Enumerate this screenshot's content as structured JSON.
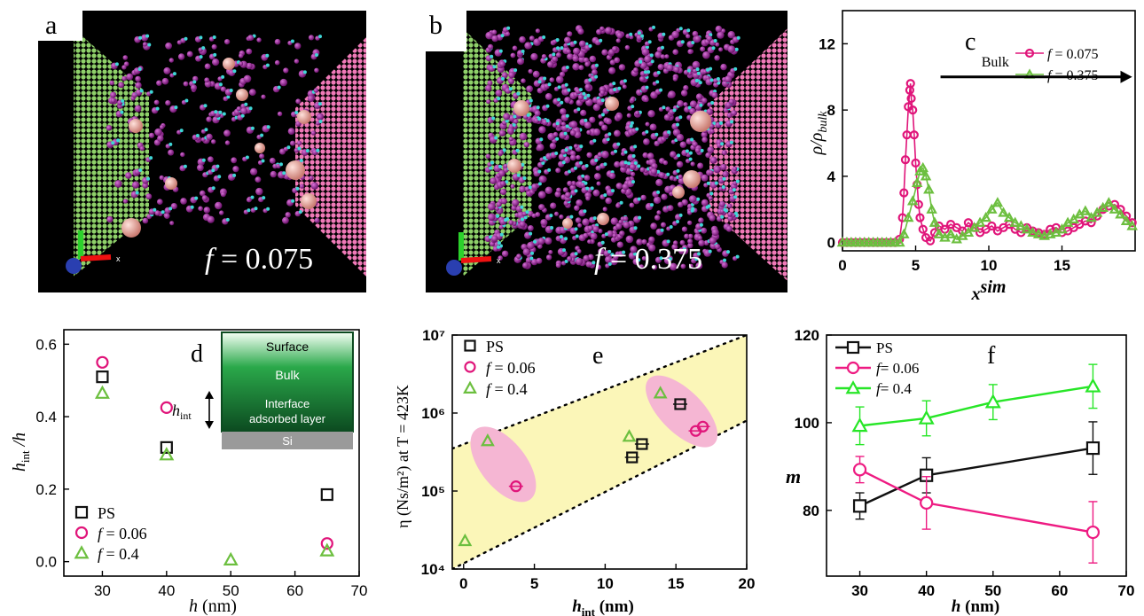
{
  "panels": {
    "a": {
      "letter": "a",
      "f_symbol": "f",
      "f_text": " = 0.075",
      "axis_label": "x"
    },
    "b": {
      "letter": "b",
      "f_symbol": "f",
      "f_text": " = 0.375",
      "axis_label": "x"
    }
  },
  "chart_data": [
    {
      "id": "c",
      "panel_letter": "c",
      "type": "line",
      "xlabel": "x",
      "xlabel_sup": "sim",
      "ylabel": "ρ/ρ",
      "ylabel_sub": "bulk",
      "xlim": [
        0,
        20
      ],
      "ylim": [
        -0.5,
        14
      ],
      "xticks": [
        "0",
        "5",
        "10",
        "15"
      ],
      "yticks": [
        "0",
        "4",
        "8",
        "12"
      ],
      "annotation": "Bulk",
      "series": [
        {
          "name": "f = 0.075",
          "legend_symbol": "f",
          "legend_value": "= 0.075",
          "color": "#e0157a",
          "marker": "circle",
          "x": [
            0,
            0.3,
            0.6,
            0.9,
            1.2,
            1.5,
            1.8,
            2.1,
            2.4,
            2.7,
            3.0,
            3.3,
            3.6,
            3.9,
            4.1,
            4.2,
            4.3,
            4.4,
            4.5,
            4.6,
            4.65,
            4.7,
            4.8,
            4.9,
            5.0,
            5.1,
            5.2,
            5.3,
            5.5,
            5.7,
            6.0,
            6.3,
            6.6,
            7.0,
            7.4,
            7.8,
            8.2,
            8.6,
            9.0,
            9.4,
            9.8,
            10.2,
            10.6,
            11.0,
            11.4,
            11.8,
            12.2,
            12.6,
            13.0,
            13.4,
            13.8,
            14.2,
            14.6,
            15.0,
            15.4,
            15.8,
            16.2,
            16.6,
            17.0,
            17.4,
            17.8,
            18.2,
            18.6,
            19.0,
            19.4,
            19.8
          ],
          "y": [
            0,
            0,
            0,
            0,
            0,
            0,
            0,
            0,
            0,
            0,
            0,
            0,
            0,
            0.2,
            1.5,
            3.0,
            5.0,
            6.5,
            8.2,
            9.2,
            9.6,
            8.7,
            8.0,
            6.5,
            4.8,
            3.5,
            2.3,
            1.5,
            0.8,
            0.3,
            0.1,
            0.6,
            1.0,
            0.8,
            1.1,
            0.9,
            0.7,
            1.2,
            0.9,
            0.6,
            0.8,
            1.0,
            0.7,
            0.9,
            1.1,
            0.8,
            0.6,
            0.9,
            0.7,
            0.6,
            0.5,
            0.8,
            0.9,
            0.6,
            0.7,
            0.9,
            1.1,
            1.3,
            1.2,
            1.6,
            2.0,
            2.2,
            2.3,
            2.0,
            1.6,
            1.2
          ]
        },
        {
          "name": "f = 0.375",
          "legend_symbol": "f",
          "legend_value": "= 0.375",
          "color": "#6cbf3f",
          "marker": "triangle",
          "x": [
            0,
            0.3,
            0.6,
            0.9,
            1.2,
            1.5,
            1.8,
            2.1,
            2.4,
            2.7,
            3.0,
            3.3,
            3.6,
            3.9,
            4.2,
            4.5,
            4.8,
            5.1,
            5.3,
            5.5,
            5.7,
            5.9,
            6.1,
            6.3,
            6.6,
            7.0,
            7.4,
            7.8,
            8.2,
            8.6,
            9.0,
            9.4,
            9.8,
            10.2,
            10.6,
            11.0,
            11.4,
            11.8,
            12.2,
            12.6,
            13.0,
            13.4,
            13.8,
            14.2,
            14.6,
            15.0,
            15.4,
            15.8,
            16.2,
            16.6,
            17.0,
            17.4,
            17.8,
            18.2,
            18.6,
            19.0,
            19.4,
            19.8
          ],
          "y": [
            0,
            0,
            0,
            0,
            0,
            0,
            0,
            0,
            0,
            0,
            0,
            0,
            0,
            0,
            0.5,
            1.5,
            2.5,
            3.6,
            4.3,
            4.5,
            4.0,
            3.2,
            2.0,
            1.2,
            0.5,
            0.3,
            0.5,
            0.2,
            0.4,
            0.6,
            0.9,
            1.2,
            1.5,
            2.0,
            2.4,
            1.8,
            1.5,
            1.2,
            1.0,
            0.8,
            0.6,
            0.5,
            0.4,
            0.5,
            0.6,
            0.8,
            1.2,
            1.4,
            1.7,
            1.9,
            1.5,
            1.8,
            2.1,
            2.4,
            2.0,
            1.7,
            1.3,
            1.0
          ]
        }
      ]
    },
    {
      "id": "d",
      "panel_letter": "d",
      "type": "scatter",
      "xlabel": "h",
      "xlabel_unit": " (nm)",
      "ylabel": "h",
      "ylabel_sub": "int",
      "ylabel_tail": " /h",
      "xlim": [
        24,
        70
      ],
      "ylim": [
        -0.04,
        0.64
      ],
      "xticks": [
        "30",
        "40",
        "50",
        "60",
        "70"
      ],
      "yticks": [
        "0.0",
        "0.2",
        "0.4",
        "0.6"
      ],
      "series": [
        {
          "name": "PS",
          "color": "#111111",
          "marker": "square",
          "x": [
            30,
            40,
            65
          ],
          "y": [
            0.51,
            0.315,
            0.185
          ]
        },
        {
          "name": "f = 0.06",
          "legend_symbol": "f",
          "legend_value": "= 0.06",
          "color": "#e0157a",
          "marker": "circle",
          "x": [
            30,
            40,
            65
          ],
          "y": [
            0.55,
            0.425,
            0.05
          ]
        },
        {
          "name": "f = 0.4",
          "legend_symbol": "f",
          "legend_value": "= 0.4",
          "color": "#6cbf3f",
          "marker": "triangle",
          "x": [
            30,
            40,
            50,
            65
          ],
          "y": [
            0.465,
            0.295,
            0.005,
            0.03
          ]
        }
      ],
      "inset": {
        "layers": [
          "Surface",
          "Bulk",
          "Interface",
          "adsorbed layer",
          "Si"
        ],
        "h_label": "h",
        "h_sub": "int"
      }
    },
    {
      "id": "e",
      "panel_letter": "e",
      "type": "scatter",
      "xlabel": "h",
      "xlabel_sub": "int",
      "xlabel_unit": " (nm)",
      "ylabel": "η (Ns/m²) at T = 423K",
      "xlim": [
        -0.8,
        20
      ],
      "ylog": true,
      "ylim": [
        10000,
        10000000
      ],
      "xticks": [
        "0",
        "5",
        "10",
        "15",
        "20"
      ],
      "yticks": [
        "10⁴",
        "10⁵",
        "10⁶",
        "10⁷"
      ],
      "series": [
        {
          "name": "PS",
          "color": "#111111",
          "marker": "square",
          "x": [
            11.9,
            12.6,
            15.3
          ],
          "y": [
            270000,
            400000,
            1300000
          ]
        },
        {
          "name": "f = 0.06",
          "legend_symbol": "f",
          "legend_value": "= 0.06",
          "color": "#e0157a",
          "marker": "circle",
          "x": [
            3.7,
            16.4,
            16.9
          ],
          "y": [
            115000,
            590000,
            670000
          ]
        },
        {
          "name": "f = 0.4",
          "legend_symbol": "f",
          "legend_value": "= 0.4",
          "color": "#6cbf3f",
          "marker": "triangle",
          "x": [
            0.1,
            1.7,
            11.7,
            13.9
          ],
          "y": [
            23000,
            440000,
            500000,
            1800000
          ]
        }
      ]
    },
    {
      "id": "f",
      "panel_letter": "f",
      "type": "line",
      "xlabel": "h",
      "xlabel_unit": " (nm)",
      "ylabel": "m",
      "xlim": [
        25,
        70
      ],
      "ylim": [
        65,
        120
      ],
      "xticks": [
        "30",
        "40",
        "50",
        "60",
        "70"
      ],
      "yticks": [
        "80",
        "100",
        "120"
      ],
      "series": [
        {
          "name": "PS",
          "color": "#111111",
          "marker": "square",
          "x": [
            30,
            40,
            65
          ],
          "y": [
            81,
            88,
            94.2
          ],
          "err": [
            3,
            4,
            6
          ]
        },
        {
          "name": "f = 0.06",
          "legend_symbol": "f",
          "legend_value": "= 0.06",
          "color": "#ee1b82",
          "marker": "circle",
          "x": [
            30,
            40,
            65
          ],
          "y": [
            89.3,
            81.7,
            75
          ],
          "err": [
            3,
            6,
            7
          ]
        },
        {
          "name": "f = 0.4",
          "legend_symbol": "f",
          "legend_value": "= 0.4",
          "color": "#27e627",
          "marker": "triangle",
          "x": [
            30,
            40,
            50,
            65
          ],
          "y": [
            99.3,
            101,
            104.7,
            108.3
          ],
          "err": [
            4.3,
            4,
            4,
            5
          ]
        }
      ]
    }
  ]
}
